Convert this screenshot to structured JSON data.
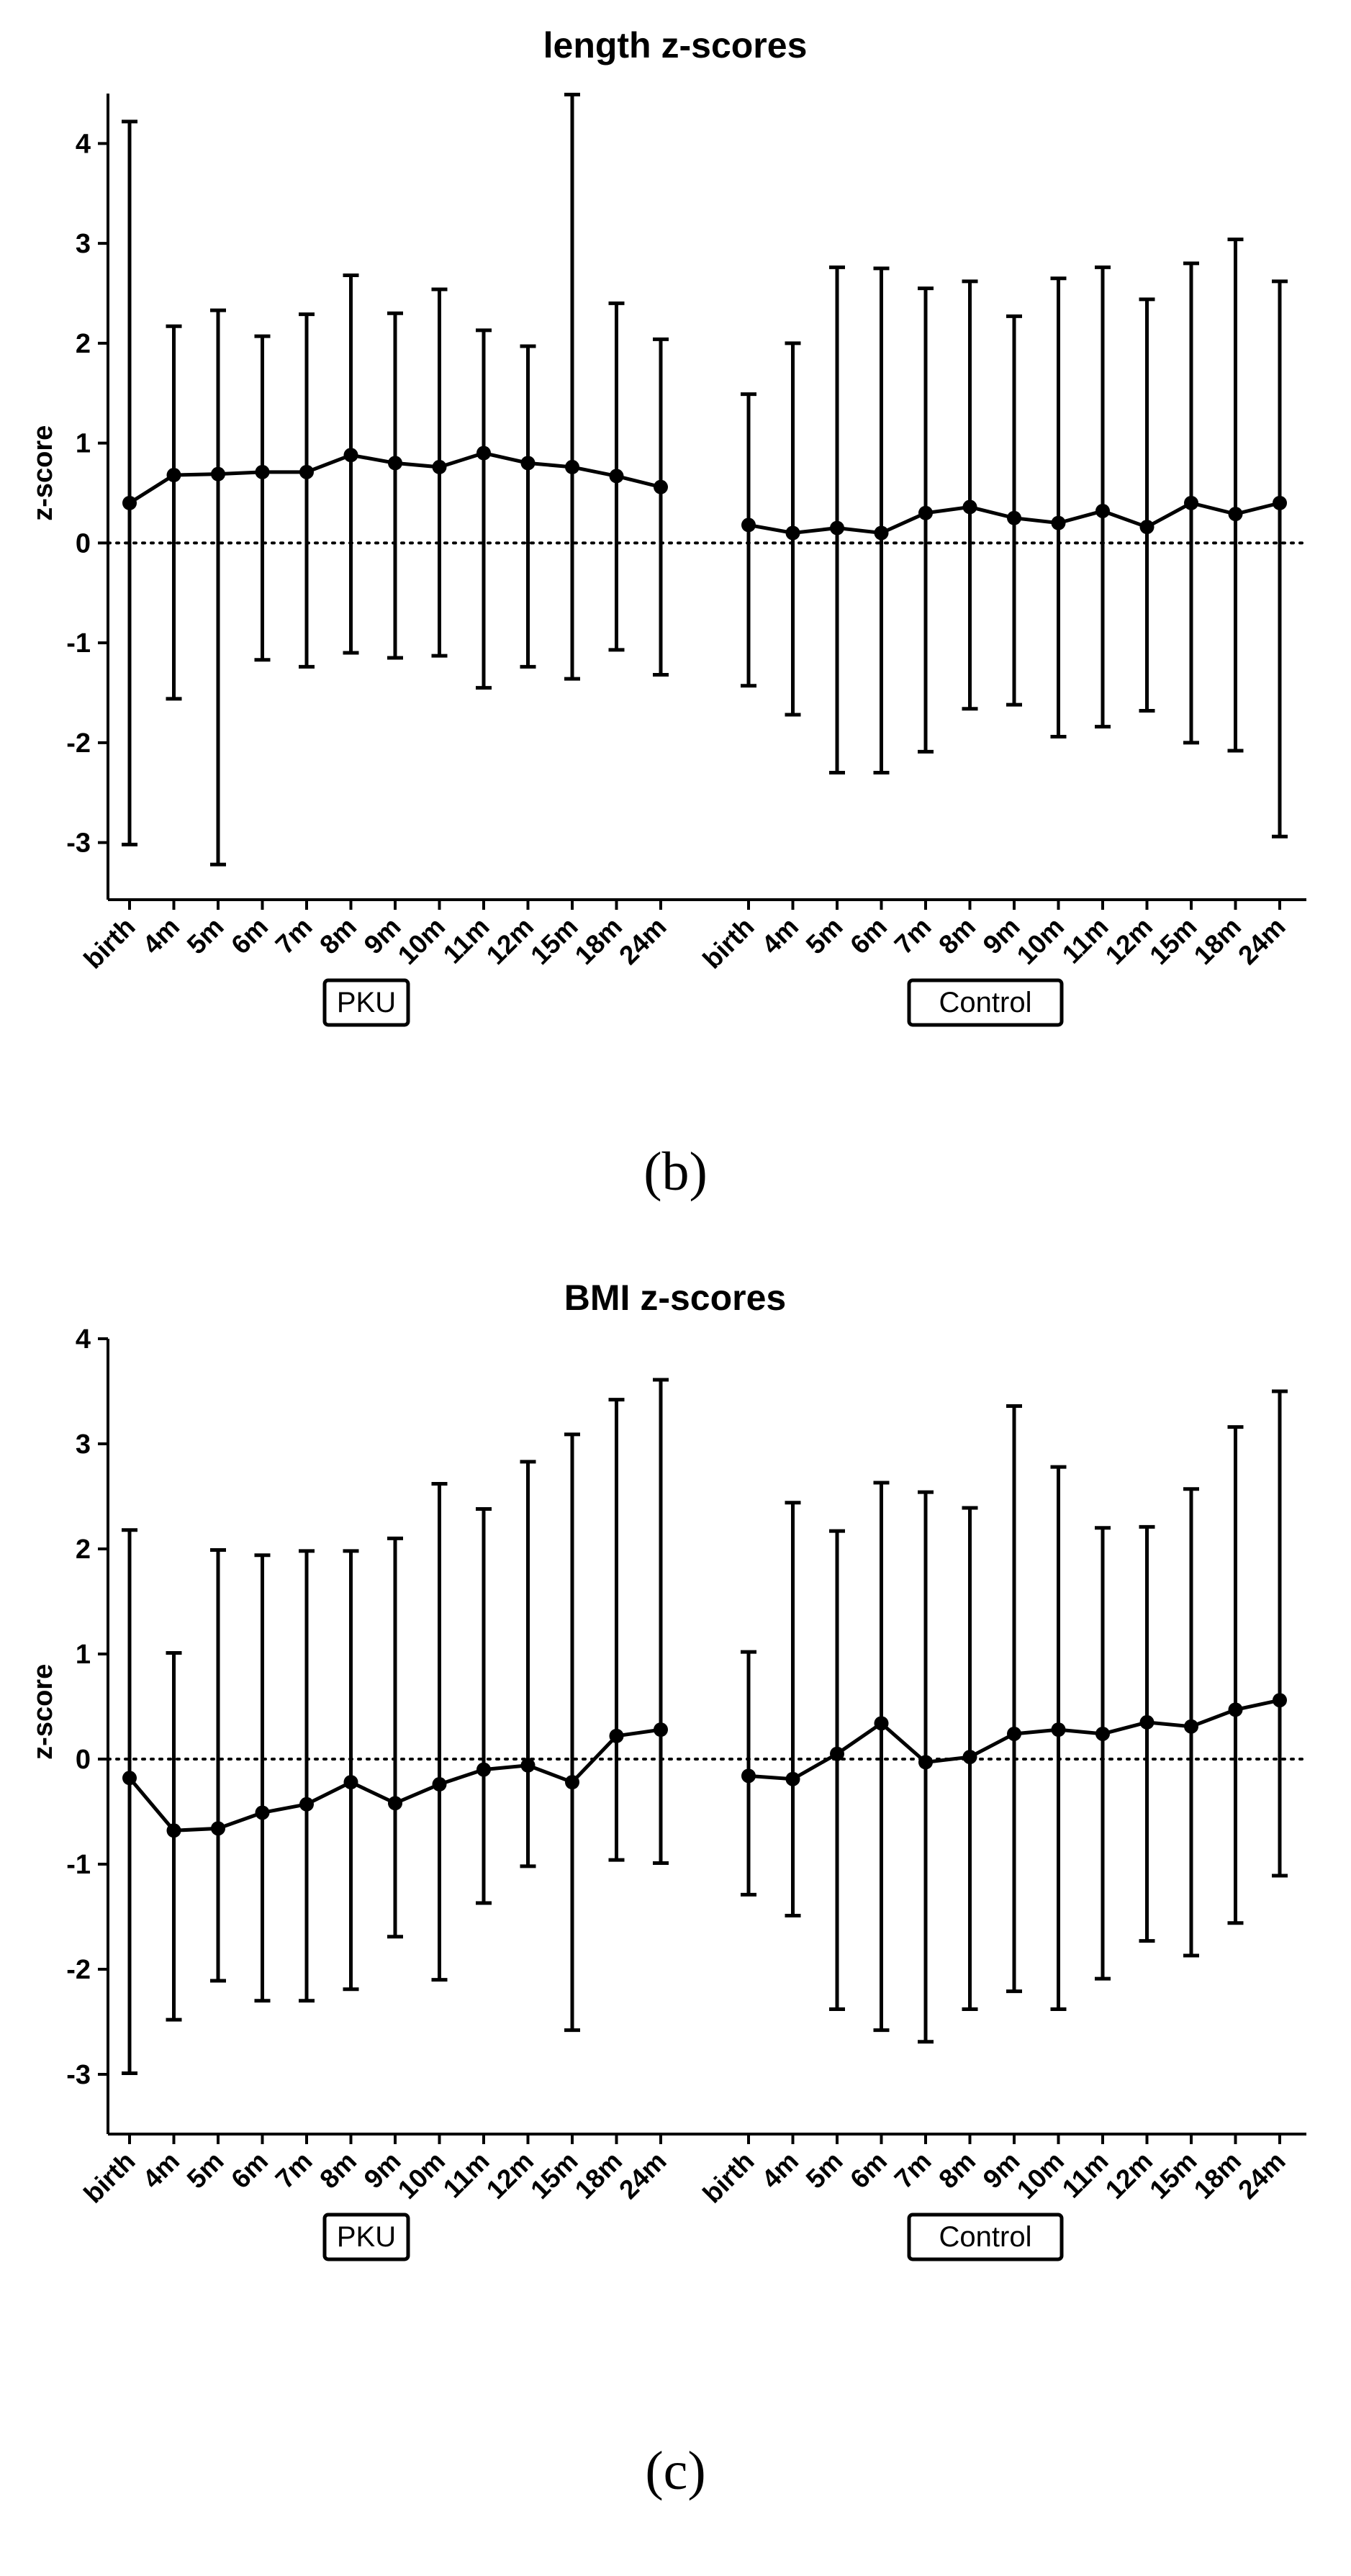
{
  "chart_data": [
    {
      "type": "line",
      "title": "length z-scores",
      "ylabel": "z-score",
      "xlabel": "",
      "ylim": [
        -3.5,
        4.5
      ],
      "yticks": [
        -3,
        -2,
        -1,
        0,
        1,
        2,
        3,
        4
      ],
      "reference_line": 0,
      "error_bars": true,
      "groups": [
        {
          "name": "PKU",
          "categories": [
            "birth",
            "4m",
            "5m",
            "6m",
            "7m",
            "8m",
            "9m",
            "10m",
            "11m",
            "12m",
            "15m",
            "18m",
            "24m"
          ],
          "mean": [
            0.4,
            0.68,
            0.69,
            0.71,
            0.71,
            0.88,
            0.8,
            0.76,
            0.9,
            0.8,
            0.76,
            0.67,
            0.56
          ],
          "upper": [
            4.22,
            2.17,
            2.33,
            2.07,
            2.29,
            2.68,
            2.3,
            2.54,
            2.13,
            1.97,
            4.49,
            2.4,
            2.04
          ],
          "lower": [
            -3.02,
            -1.56,
            -3.22,
            -1.17,
            -1.24,
            -1.1,
            -1.15,
            -1.13,
            -1.45,
            -1.24,
            -1.36,
            -1.07,
            -1.32
          ]
        },
        {
          "name": "Control",
          "categories": [
            "birth",
            "4m",
            "5m",
            "6m",
            "7m",
            "8m",
            "9m",
            "10m",
            "11m",
            "12m",
            "15m",
            "18m",
            "24m"
          ],
          "mean": [
            0.18,
            0.1,
            0.15,
            0.1,
            0.3,
            0.36,
            0.25,
            0.2,
            0.32,
            0.16,
            0.4,
            0.29,
            0.4
          ],
          "upper": [
            1.49,
            2.0,
            2.76,
            2.75,
            2.55,
            2.62,
            2.27,
            2.65,
            2.76,
            2.44,
            2.8,
            3.04,
            2.62
          ],
          "lower": [
            -1.43,
            -1.72,
            -2.3,
            -2.3,
            -2.09,
            -1.66,
            -1.62,
            -1.94,
            -1.84,
            -1.68,
            -2.0,
            -2.08,
            -2.94
          ]
        }
      ],
      "caption": "(b)"
    },
    {
      "type": "line",
      "title": "BMI z-scores",
      "ylabel": "z-score",
      "xlabel": "",
      "ylim": [
        -3.5,
        4
      ],
      "yticks": [
        -3,
        -2,
        -1,
        0,
        1,
        2,
        3,
        4
      ],
      "reference_line": 0,
      "error_bars": true,
      "groups": [
        {
          "name": "PKU",
          "categories": [
            "birth",
            "4m",
            "5m",
            "6m",
            "7m",
            "8m",
            "9m",
            "10m",
            "11m",
            "12m",
            "15m",
            "18m",
            "24m"
          ],
          "mean": [
            -0.18,
            -0.68,
            -0.66,
            -0.51,
            -0.43,
            -0.22,
            -0.42,
            -0.24,
            -0.1,
            -0.06,
            -0.22,
            0.22,
            0.28
          ],
          "upper": [
            2.18,
            1.01,
            1.99,
            1.94,
            1.98,
            1.98,
            2.1,
            2.62,
            2.38,
            2.83,
            3.09,
            3.42,
            3.61
          ],
          "lower": [
            -2.99,
            -2.48,
            -2.11,
            -2.3,
            -2.3,
            -2.19,
            -1.69,
            -2.1,
            -1.37,
            -1.02,
            -2.58,
            -0.96,
            -0.99
          ]
        },
        {
          "name": "Control",
          "categories": [
            "birth",
            "4m",
            "5m",
            "6m",
            "7m",
            "8m",
            "9m",
            "10m",
            "11m",
            "12m",
            "15m",
            "18m",
            "24m"
          ],
          "mean": [
            -0.16,
            -0.19,
            0.05,
            0.34,
            -0.03,
            0.02,
            0.24,
            0.28,
            0.24,
            0.35,
            0.31,
            0.47,
            0.56
          ],
          "upper": [
            1.02,
            2.44,
            2.17,
            2.63,
            2.54,
            2.39,
            3.36,
            2.78,
            2.2,
            2.21,
            2.57,
            3.16,
            3.5
          ],
          "lower": [
            -1.29,
            -1.49,
            -2.38,
            -2.58,
            -2.69,
            -2.38,
            -2.21,
            -2.38,
            -2.09,
            -1.73,
            -1.87,
            -1.56,
            -1.11
          ]
        }
      ],
      "caption": "(c)"
    }
  ]
}
